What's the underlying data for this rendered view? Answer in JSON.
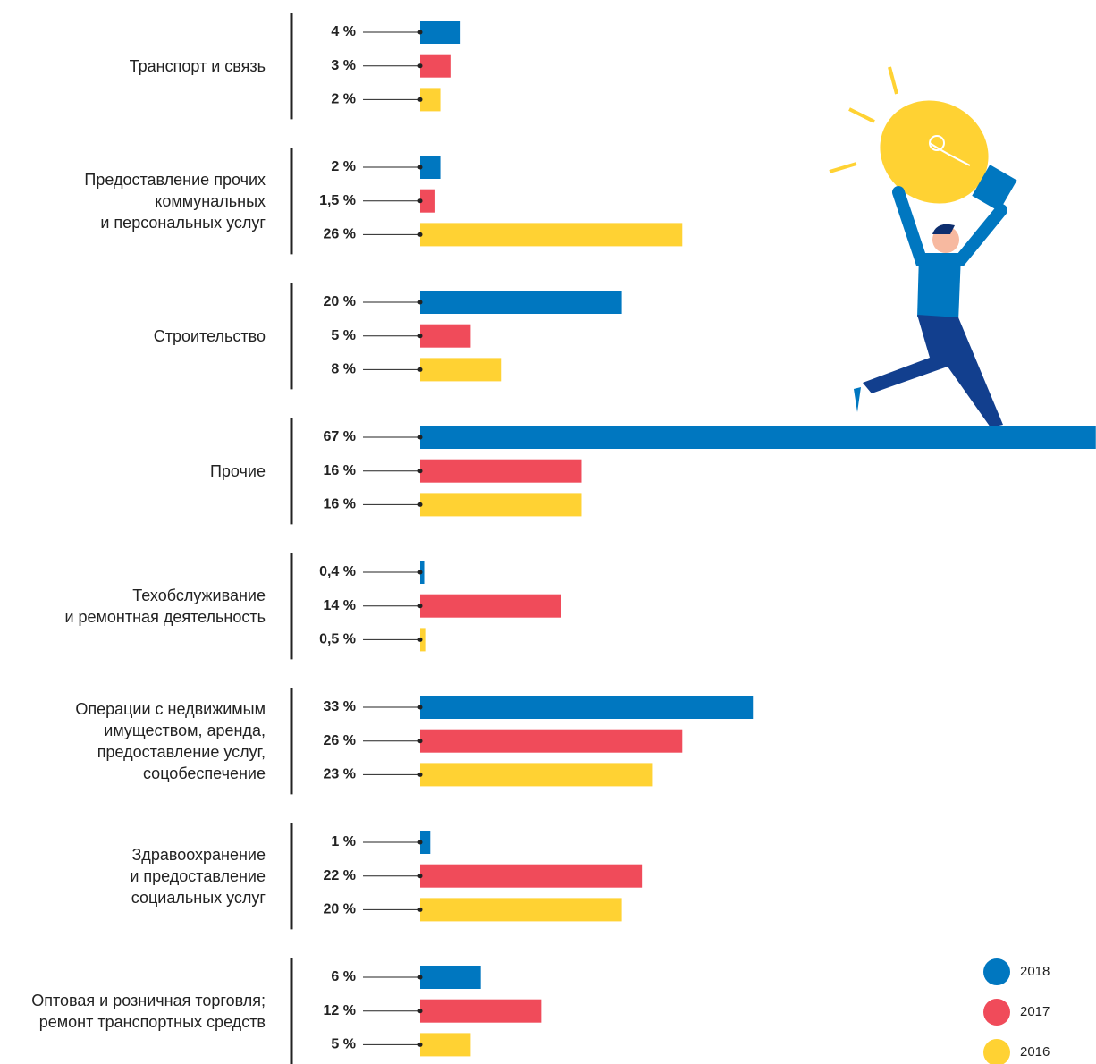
{
  "chart_data": {
    "type": "bar",
    "orientation": "horizontal",
    "categories": [
      "Транспорт и связь",
      "Предоставление прочих\nкоммунальных\nи персональных услуг",
      "Строительство",
      "Прочие",
      "Техобслуживание\nи ремонтная деятельность",
      "Операции с недвижимым\nимуществом, аренда,\nпредоставление услуг,\nсоцобеспечение",
      "Здравоохранение\nи предоставление\nсоциальных услуг",
      "Оптовая и розничная торговля;\nремонт транспортных средств"
    ],
    "series": [
      {
        "name": "2018",
        "color": "#0077c0",
        "values": [
          4,
          2,
          20,
          67,
          0.4,
          33,
          1,
          6
        ],
        "value_labels": [
          "4 %",
          "2 %",
          "20 %",
          "67 %",
          "0,4 %",
          "33 %",
          "1 %",
          "6 %"
        ]
      },
      {
        "name": "2017",
        "color": "#f04b5a",
        "values": [
          3,
          1.5,
          5,
          16,
          14,
          26,
          22,
          12
        ],
        "value_labels": [
          "3 %",
          "1,5 %",
          "5 %",
          "16 %",
          "14 %",
          "26 %",
          "22 %",
          "12 %"
        ]
      },
      {
        "name": "2016",
        "color": "#ffd233",
        "values": [
          2,
          26,
          8,
          16,
          0.5,
          23,
          20,
          5
        ],
        "value_labels": [
          "2 %",
          "26 %",
          "8 %",
          "16 %",
          "0,5 %",
          "23 %",
          "20 %",
          "5 %"
        ]
      }
    ],
    "legend": "bottom-right"
  }
}
